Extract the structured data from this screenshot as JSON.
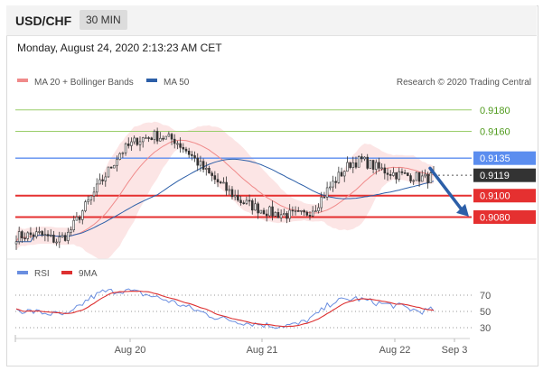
{
  "header": {
    "symbol": "USD/CHF",
    "timeframe": "30 MIN"
  },
  "datetime": "Monday, August 24, 2020 2:13:23 AM CET",
  "legend": {
    "bollinger": "MA 20 + Bollinger Bands",
    "ma50": "MA 50",
    "rsi": "RSI",
    "rsi_ma": "9MA",
    "credit": "Research © 2020 Trading Central"
  },
  "colors": {
    "resistance": "#9acd6a",
    "pivot": "#5b8def",
    "support": "#e53030",
    "bollinger": "#f08a8a",
    "ma50": "#2c5fa8",
    "current": "#333333",
    "arrow": "#2c5fa8",
    "rsi": "#6a8ee0",
    "rsi_ma": "#dd3030"
  },
  "chart_data": [
    {
      "type": "candlestick",
      "ylim": [
        0.9045,
        0.9195
      ],
      "x_ticks": [
        "Aug 20",
        "Aug 21",
        "Aug 22",
        "Sep 3"
      ],
      "levels": [
        {
          "value": 0.918,
          "label": "0.9180",
          "role": "resistance"
        },
        {
          "value": 0.916,
          "label": "0.9160",
          "role": "resistance"
        },
        {
          "value": 0.9135,
          "label": "0.9135",
          "role": "pivot"
        },
        {
          "value": 0.9119,
          "label": "0.9119",
          "role": "current"
        },
        {
          "value": 0.91,
          "label": "0.9100",
          "role": "support"
        },
        {
          "value": 0.908,
          "label": "0.9080",
          "role": "support"
        }
      ],
      "price_keypoints": [
        [
          0,
          0.9062
        ],
        [
          8,
          0.9064
        ],
        [
          14,
          0.9058
        ],
        [
          18,
          0.9064
        ],
        [
          24,
          0.909
        ],
        [
          30,
          0.9115
        ],
        [
          36,
          0.914
        ],
        [
          42,
          0.9152
        ],
        [
          48,
          0.9156
        ],
        [
          55,
          0.9152
        ],
        [
          60,
          0.914
        ],
        [
          66,
          0.9122
        ],
        [
          72,
          0.9108
        ],
        [
          78,
          0.9095
        ],
        [
          84,
          0.9088
        ],
        [
          90,
          0.9083
        ],
        [
          96,
          0.9082
        ],
        [
          100,
          0.9082
        ],
        [
          104,
          0.909
        ],
        [
          108,
          0.9105
        ],
        [
          112,
          0.9118
        ],
        [
          116,
          0.913
        ],
        [
          120,
          0.9133
        ],
        [
          126,
          0.9125
        ],
        [
          132,
          0.912
        ],
        [
          138,
          0.9118
        ],
        [
          142,
          0.9116
        ],
        [
          145,
          0.9118
        ]
      ],
      "rsi": {
        "levels": [
          70,
          50,
          30
        ],
        "ylim": [
          20,
          80
        ],
        "keypoints": [
          [
            0,
            52
          ],
          [
            10,
            48
          ],
          [
            18,
            45
          ],
          [
            25,
            65
          ],
          [
            30,
            74
          ],
          [
            38,
            76
          ],
          [
            46,
            70
          ],
          [
            54,
            62
          ],
          [
            62,
            52
          ],
          [
            70,
            42
          ],
          [
            80,
            36
          ],
          [
            90,
            32
          ],
          [
            98,
            34
          ],
          [
            104,
            45
          ],
          [
            110,
            62
          ],
          [
            118,
            66
          ],
          [
            126,
            60
          ],
          [
            134,
            56
          ],
          [
            140,
            50
          ],
          [
            145,
            52
          ]
        ]
      }
    }
  ]
}
